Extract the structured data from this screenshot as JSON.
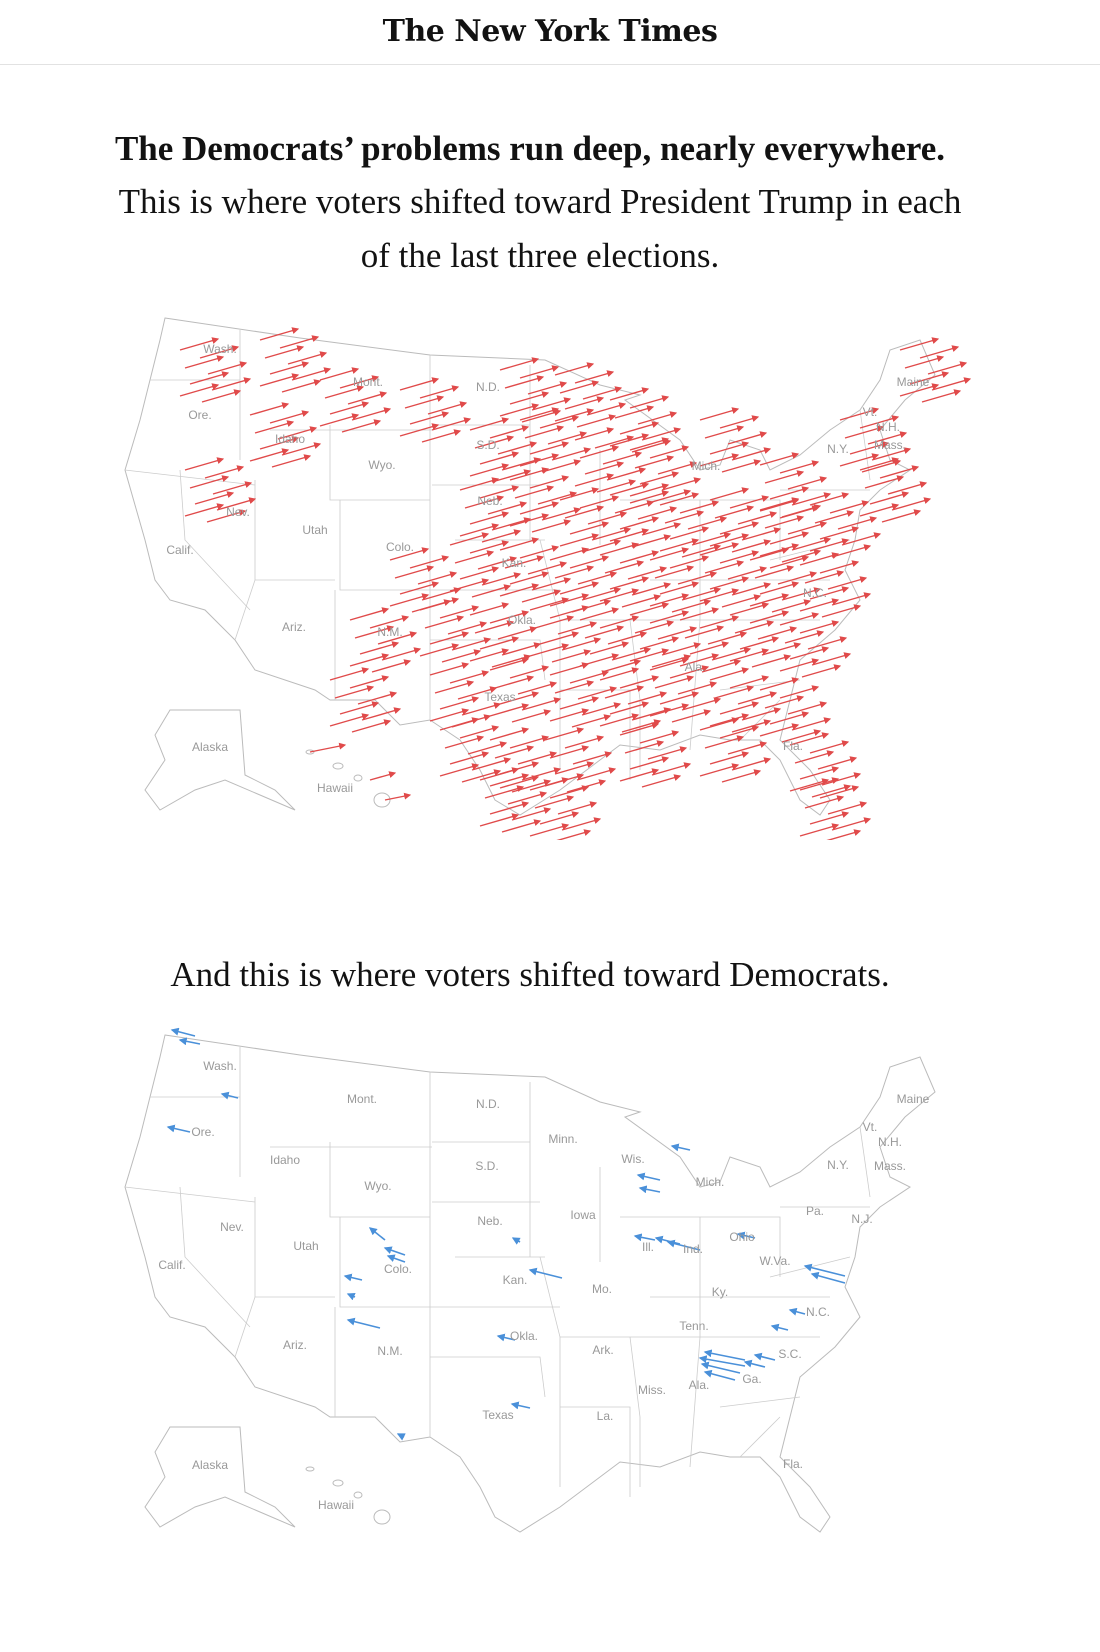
{
  "header": {
    "logo": "The New York Times"
  },
  "headline": "The Democrats’ problems run deep, nearly everywhere.",
  "subhead": "This is where voters shifted toward President Trump in each of the last three elections.",
  "maps": [
    {
      "labels": [
        "Wash.",
        "Mont.",
        "N.D.",
        "Ore.",
        "Idaho",
        "S.D.",
        "Wyo.",
        "Neb.",
        "Nev.",
        "Utah",
        "Colo.",
        "Calif.",
        "Kan.",
        "Okla.",
        "Ariz.",
        "N.M.",
        "Texas",
        "Ala.",
        "Fla.",
        "N.C.",
        "Mich.",
        "N.Y.",
        "Maine",
        "Vt.",
        "N.H.",
        "Mass.",
        "Alaska",
        "Hawaii"
      ]
    },
    {
      "heading": "And this is where voters shifted toward Democrats.",
      "labels": [
        "Wash.",
        "Mont.",
        "N.D.",
        "Minn.",
        "Ore.",
        "Idaho",
        "S.D.",
        "Wis.",
        "Mich.",
        "N.Y.",
        "Maine",
        "Vt.",
        "N.H.",
        "Mass.",
        "Wyo.",
        "Iowa",
        "Neb.",
        "Pa.",
        "N.J.",
        "Nev.",
        "Utah",
        "Colo.",
        "Ill.",
        "Ind.",
        "Ohio",
        "Calif.",
        "Kan.",
        "Mo.",
        "W.Va.",
        "Ky.",
        "N.C.",
        "Tenn.",
        "Okla.",
        "Ark.",
        "S.C.",
        "Ariz.",
        "N.M.",
        "Ga.",
        "Ala.",
        "Miss.",
        "Texas",
        "La.",
        "Fla.",
        "Alaska",
        "Hawaii"
      ]
    }
  ]
}
